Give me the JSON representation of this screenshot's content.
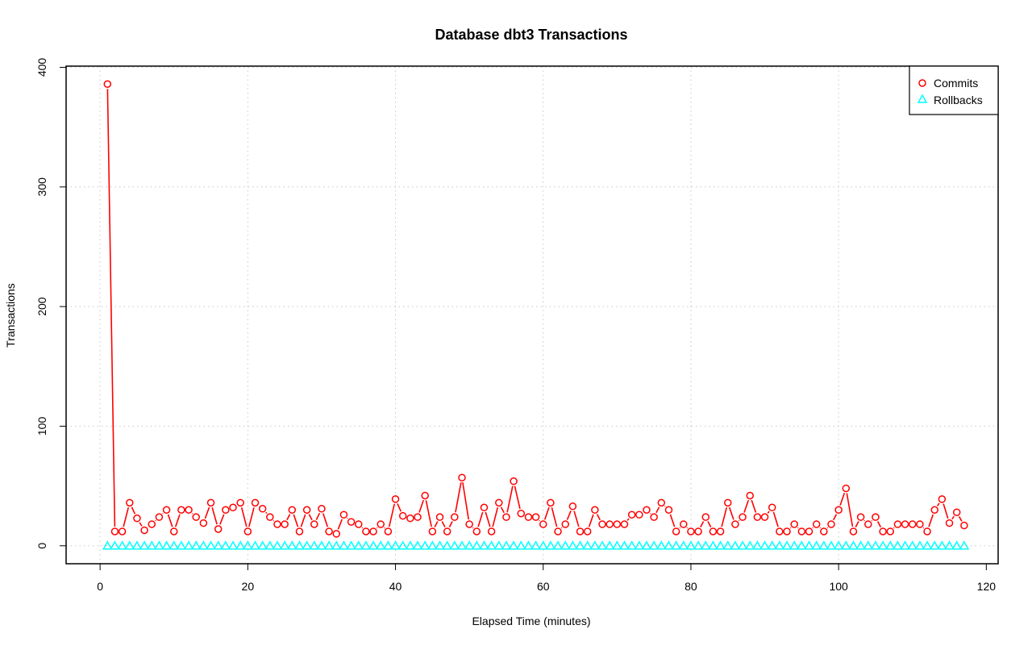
{
  "chart_data": {
    "type": "line",
    "title": "Database dbt3 Transactions",
    "xlabel": "Elapsed Time (minutes)",
    "ylabel": "Transactions",
    "xlim": [
      -4.6,
      121.6
    ],
    "ylim": [
      -15,
      401
    ],
    "xticks": [
      0,
      20,
      40,
      60,
      80,
      100,
      120
    ],
    "yticks": [
      0,
      100,
      200,
      300,
      400
    ],
    "grid": true,
    "legend_position": "top-right",
    "colors": {
      "commits": "#ff0000",
      "rollbacks": "#00ffff"
    },
    "series": [
      {
        "name": "Commits",
        "marker": "circle",
        "values": [
          386,
          12,
          12,
          36,
          23,
          13,
          18,
          24,
          30,
          12,
          30,
          30,
          24,
          19,
          36,
          14,
          30,
          32,
          36,
          12,
          36,
          31,
          24,
          18,
          18,
          30,
          12,
          30,
          18,
          31,
          12,
          10,
          26,
          20,
          18,
          12,
          12,
          18,
          12,
          39,
          25,
          23,
          24,
          42,
          12,
          24,
          12,
          24,
          57,
          18,
          12,
          32,
          12,
          36,
          24,
          54,
          27,
          24,
          24,
          18,
          36,
          12,
          18,
          33,
          12,
          12,
          30,
          18,
          18,
          18,
          18,
          26,
          26,
          30,
          24,
          36,
          30,
          12,
          18,
          12,
          12,
          24,
          12,
          12,
          36,
          18,
          24,
          42,
          24,
          24,
          32,
          12,
          12,
          18,
          12,
          12,
          18,
          12,
          18,
          30,
          48,
          12,
          24,
          18,
          24,
          12,
          12,
          18,
          18,
          18,
          18,
          12,
          30,
          39,
          19,
          28,
          17
        ]
      },
      {
        "name": "Rollbacks",
        "marker": "triangle",
        "values": [
          0,
          0,
          0,
          0,
          0,
          0,
          0,
          0,
          0,
          0,
          0,
          0,
          0,
          0,
          0,
          0,
          0,
          0,
          0,
          0,
          0,
          0,
          0,
          0,
          0,
          0,
          0,
          0,
          0,
          0,
          0,
          0,
          0,
          0,
          0,
          0,
          0,
          0,
          0,
          0,
          0,
          0,
          0,
          0,
          0,
          0,
          0,
          0,
          0,
          0,
          0,
          0,
          0,
          0,
          0,
          0,
          0,
          0,
          0,
          0,
          0,
          0,
          0,
          0,
          0,
          0,
          0,
          0,
          0,
          0,
          0,
          0,
          0,
          0,
          0,
          0,
          0,
          0,
          0,
          0,
          0,
          0,
          0,
          0,
          0,
          0,
          0,
          0,
          0,
          0,
          0,
          0,
          0,
          0,
          0,
          0,
          0,
          0,
          0,
          0,
          0,
          0,
          0,
          0,
          0,
          0,
          0,
          0,
          0,
          0,
          0,
          0,
          0,
          0,
          0,
          0,
          0
        ]
      }
    ]
  }
}
